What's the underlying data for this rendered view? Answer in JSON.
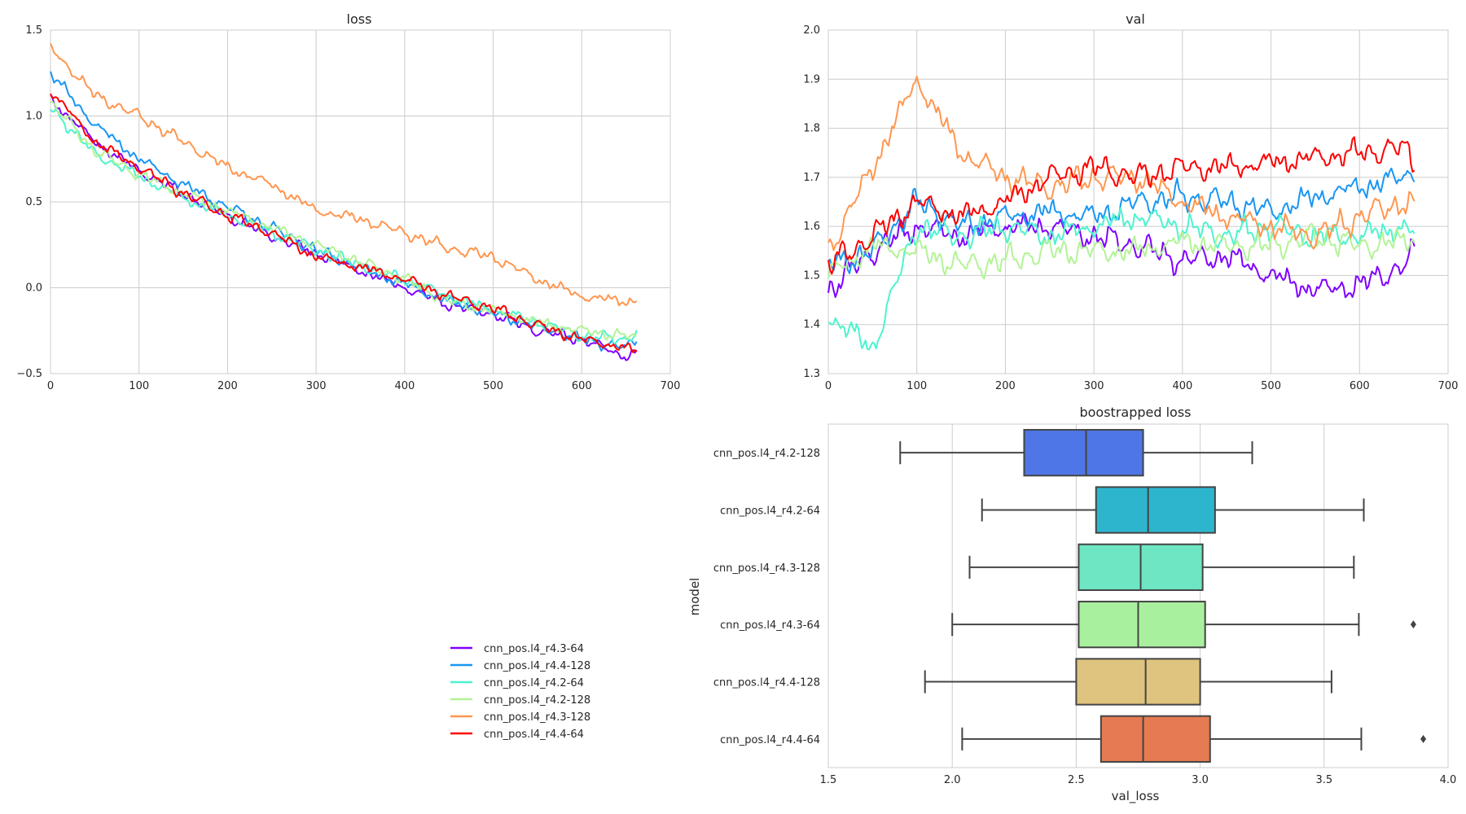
{
  "chart_data": [
    {
      "type": "line",
      "title": "loss",
      "xlim": [
        0,
        700
      ],
      "ylim": [
        -0.5,
        1.5
      ],
      "xticks": [
        "0",
        "100",
        "200",
        "300",
        "400",
        "500",
        "600",
        "700"
      ],
      "yticks": [
        "−0.5",
        "0.0",
        "0.5",
        "1.0",
        "1.5"
      ],
      "grid": true,
      "series": [
        {
          "name": "cnn_pos.l4_r4.3-64",
          "color": "#8000ff",
          "x": [
            0,
            50,
            100,
            150,
            200,
            250,
            300,
            350,
            400,
            450,
            500,
            550,
            600,
            650,
            663
          ],
          "y": [
            1.1,
            0.85,
            0.68,
            0.55,
            0.42,
            0.3,
            0.2,
            0.1,
            0.0,
            -0.1,
            -0.15,
            -0.25,
            -0.3,
            -0.4,
            -0.37
          ]
        },
        {
          "name": "cnn_pos.l4_r4.4-128",
          "color": "#1996f3",
          "x": [
            0,
            50,
            100,
            150,
            200,
            250,
            300,
            350,
            400,
            450,
            500,
            550,
            600,
            650,
            663
          ],
          "y": [
            1.25,
            0.95,
            0.75,
            0.6,
            0.47,
            0.35,
            0.22,
            0.12,
            0.02,
            -0.08,
            -0.15,
            -0.22,
            -0.3,
            -0.35,
            -0.3
          ]
        },
        {
          "name": "cnn_pos.l4_r4.2-64",
          "color": "#4df3ce",
          "x": [
            0,
            50,
            100,
            150,
            200,
            250,
            300,
            350,
            400,
            450,
            500,
            550,
            600,
            650,
            663
          ],
          "y": [
            1.05,
            0.78,
            0.65,
            0.52,
            0.42,
            0.32,
            0.22,
            0.13,
            0.05,
            -0.05,
            -0.13,
            -0.2,
            -0.28,
            -0.3,
            -0.25
          ]
        },
        {
          "name": "cnn_pos.l4_r4.2-128",
          "color": "#b3f396",
          "x": [
            0,
            50,
            100,
            150,
            200,
            250,
            300,
            350,
            400,
            450,
            500,
            550,
            600,
            650,
            663
          ],
          "y": [
            1.08,
            0.8,
            0.66,
            0.55,
            0.45,
            0.35,
            0.25,
            0.15,
            0.05,
            -0.08,
            -0.13,
            -0.2,
            -0.25,
            -0.28,
            -0.3
          ]
        },
        {
          "name": "cnn_pos.l4_r4.3-128",
          "color": "#ff964f",
          "x": [
            0,
            50,
            100,
            150,
            200,
            250,
            300,
            350,
            400,
            450,
            500,
            550,
            600,
            650,
            663
          ],
          "y": [
            1.4,
            1.12,
            1.0,
            0.85,
            0.7,
            0.6,
            0.45,
            0.4,
            0.32,
            0.23,
            0.18,
            0.05,
            -0.05,
            -0.08,
            -0.07
          ]
        },
        {
          "name": "cnn_pos.l4_r4.4-64",
          "color": "#ff0000",
          "x": [
            0,
            50,
            100,
            150,
            200,
            250,
            300,
            350,
            400,
            450,
            500,
            550,
            600,
            650,
            663
          ],
          "y": [
            1.15,
            0.85,
            0.7,
            0.55,
            0.42,
            0.32,
            0.18,
            0.12,
            0.05,
            -0.05,
            -0.12,
            -0.22,
            -0.3,
            -0.35,
            -0.38
          ]
        }
      ]
    },
    {
      "type": "line",
      "title": "val",
      "xlim": [
        0,
        700
      ],
      "ylim": [
        1.3,
        2.0
      ],
      "xticks": [
        "0",
        "100",
        "200",
        "300",
        "400",
        "500",
        "600",
        "700"
      ],
      "yticks": [
        "1.3",
        "1.4",
        "1.5",
        "1.6",
        "1.7",
        "1.8",
        "1.9",
        "2.0"
      ],
      "grid": true,
      "series": [
        {
          "name": "cnn_pos.l4_r4.3-64",
          "color": "#8000ff",
          "x": [
            0,
            50,
            100,
            150,
            200,
            250,
            300,
            350,
            400,
            450,
            500,
            550,
            600,
            650,
            663
          ],
          "y": [
            1.47,
            1.55,
            1.6,
            1.58,
            1.6,
            1.6,
            1.58,
            1.56,
            1.53,
            1.54,
            1.5,
            1.47,
            1.48,
            1.52,
            1.55
          ]
        },
        {
          "name": "cnn_pos.l4_r4.4-128",
          "color": "#1996f3",
          "x": [
            0,
            50,
            100,
            150,
            200,
            250,
            300,
            350,
            400,
            450,
            500,
            550,
            600,
            650,
            663
          ],
          "y": [
            1.52,
            1.55,
            1.65,
            1.6,
            1.62,
            1.63,
            1.62,
            1.65,
            1.66,
            1.65,
            1.63,
            1.66,
            1.68,
            1.7,
            1.72
          ]
        },
        {
          "name": "cnn_pos.l4_r4.2-64",
          "color": "#4df3ce",
          "x": [
            0,
            50,
            100,
            150,
            200,
            250,
            300,
            350,
            400,
            450,
            500,
            550,
            600,
            650,
            663
          ],
          "y": [
            1.42,
            1.35,
            1.6,
            1.58,
            1.6,
            1.58,
            1.6,
            1.62,
            1.6,
            1.58,
            1.6,
            1.58,
            1.58,
            1.6,
            1.58
          ]
        },
        {
          "name": "cnn_pos.l4_r4.2-128",
          "color": "#b3f396",
          "x": [
            0,
            50,
            100,
            150,
            200,
            250,
            300,
            350,
            400,
            450,
            500,
            550,
            600,
            650,
            663
          ],
          "y": [
            1.5,
            1.56,
            1.55,
            1.52,
            1.53,
            1.55,
            1.55,
            1.55,
            1.57,
            1.56,
            1.56,
            1.58,
            1.56,
            1.57,
            1.58
          ]
        },
        {
          "name": "cnn_pos.l4_r4.3-128",
          "color": "#ff964f",
          "x": [
            0,
            50,
            100,
            150,
            200,
            250,
            300,
            350,
            400,
            450,
            500,
            550,
            600,
            650,
            663
          ],
          "y": [
            1.55,
            1.72,
            1.9,
            1.75,
            1.7,
            1.68,
            1.7,
            1.7,
            1.65,
            1.62,
            1.6,
            1.58,
            1.62,
            1.65,
            1.64
          ]
        },
        {
          "name": "cnn_pos.l4_r4.4-64",
          "color": "#ff0000",
          "x": [
            0,
            50,
            100,
            150,
            200,
            250,
            300,
            350,
            400,
            450,
            500,
            550,
            600,
            650,
            663
          ],
          "y": [
            1.52,
            1.58,
            1.65,
            1.62,
            1.65,
            1.7,
            1.72,
            1.7,
            1.72,
            1.72,
            1.73,
            1.74,
            1.75,
            1.76,
            1.73
          ]
        }
      ]
    },
    {
      "type": "box",
      "title": "boostrapped loss",
      "xlabel": "val_loss",
      "ylabel": "model",
      "xlim": [
        1.5,
        4.0
      ],
      "xticks": [
        "1.5",
        "2.0",
        "2.5",
        "3.0",
        "3.5",
        "4.0"
      ],
      "grid": true,
      "boxes": [
        {
          "label": "cnn_pos.l4_r4.2-128",
          "color": "#4e76e6",
          "whisker_low": 1.79,
          "q1": 2.29,
          "median": 2.54,
          "q3": 2.77,
          "whisker_high": 3.21,
          "outliers": []
        },
        {
          "label": "cnn_pos.l4_r4.2-64",
          "color": "#2db5cd",
          "whisker_low": 2.12,
          "q1": 2.58,
          "median": 2.79,
          "q3": 3.06,
          "whisker_high": 3.66,
          "outliers": []
        },
        {
          "label": "cnn_pos.l4_r4.3-128",
          "color": "#6ee6c4",
          "whisker_low": 2.07,
          "q1": 2.51,
          "median": 2.76,
          "q3": 3.01,
          "whisker_high": 3.62,
          "outliers": []
        },
        {
          "label": "cnn_pos.l4_r4.3-64",
          "color": "#a9f09e",
          "whisker_low": 2.0,
          "q1": 2.51,
          "median": 2.75,
          "q3": 3.02,
          "whisker_high": 3.64,
          "outliers": [
            3.86
          ]
        },
        {
          "label": "cnn_pos.l4_r4.4-128",
          "color": "#dfc47f",
          "whisker_low": 1.89,
          "q1": 2.5,
          "median": 2.78,
          "q3": 3.0,
          "whisker_high": 3.53,
          "outliers": []
        },
        {
          "label": "cnn_pos.l4_r4.4-64",
          "color": "#e67a52",
          "whisker_low": 2.04,
          "q1": 2.6,
          "median": 2.77,
          "q3": 3.04,
          "whisker_high": 3.65,
          "outliers": [
            3.9
          ]
        }
      ]
    }
  ],
  "legend": {
    "placement": "bottom-left",
    "entries": [
      {
        "label": "cnn_pos.l4_r4.3-64",
        "color": "#8000ff"
      },
      {
        "label": "cnn_pos.l4_r4.4-128",
        "color": "#1996f3"
      },
      {
        "label": "cnn_pos.l4_r4.2-64",
        "color": "#4df3ce"
      },
      {
        "label": "cnn_pos.l4_r4.2-128",
        "color": "#b3f396"
      },
      {
        "label": "cnn_pos.l4_r4.3-128",
        "color": "#ff964f"
      },
      {
        "label": "cnn_pos.l4_r4.4-64",
        "color": "#ff0000"
      }
    ]
  }
}
